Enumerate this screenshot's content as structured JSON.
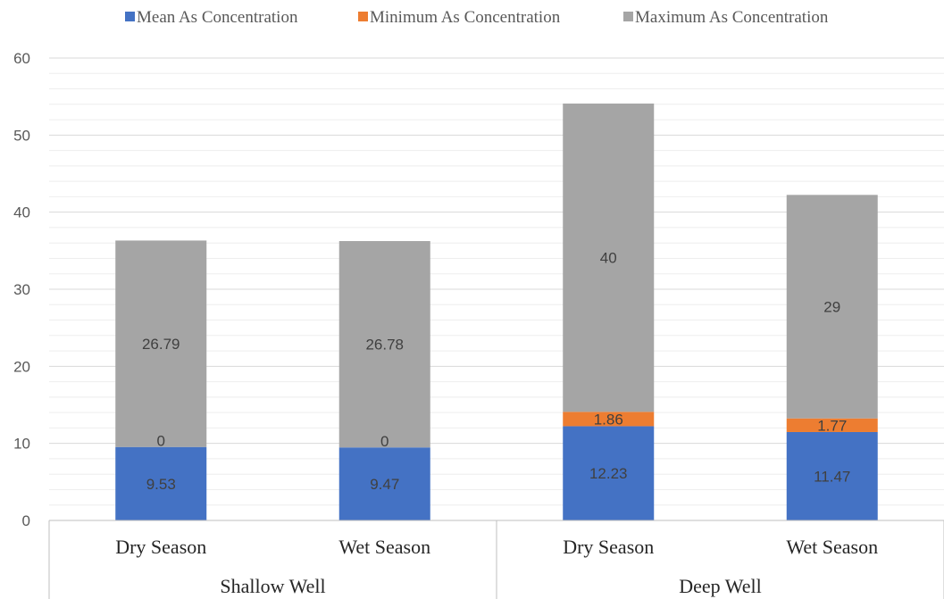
{
  "chart_data": {
    "type": "bar",
    "stacked": true,
    "categories": [
      "Dry Season",
      "Wet Season",
      "Dry Season",
      "Wet Season"
    ],
    "groups": [
      {
        "label": "Shallow Well",
        "categories": [
          0,
          1
        ]
      },
      {
        "label": "Deep Well",
        "categories": [
          2,
          3
        ]
      }
    ],
    "series": [
      {
        "name": "Mean As Concentration",
        "color": "#4472C4",
        "values": [
          9.53,
          9.47,
          12.23,
          11.47
        ],
        "labels": [
          "9.53",
          "9.47",
          "12.23",
          "11.47"
        ]
      },
      {
        "name": "Minimum As Concentration",
        "color": "#ED7D31",
        "values": [
          0,
          0,
          1.86,
          1.77
        ],
        "labels": [
          "0",
          "0",
          "1.86",
          "1.77"
        ]
      },
      {
        "name": "Maximum As Concentration",
        "color": "#A5A5A5",
        "values": [
          26.79,
          26.78,
          40,
          29
        ],
        "labels": [
          "26.79",
          "26.78",
          "40",
          "29"
        ]
      }
    ],
    "ylim": [
      0,
      60
    ],
    "yticks": [
      "0",
      "10",
      "20",
      "30",
      "40",
      "50",
      "60"
    ],
    "grid": true,
    "legend": "top"
  }
}
